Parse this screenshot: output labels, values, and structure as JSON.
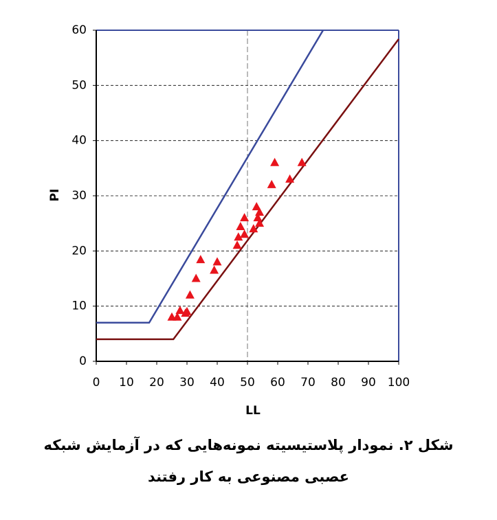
{
  "chart_data": {
    "type": "scatter",
    "x_label": "LL",
    "y_label": "PI",
    "xlim": [
      0,
      100
    ],
    "ylim": [
      0,
      60
    ],
    "xticks": [
      0,
      10,
      20,
      30,
      40,
      50,
      60,
      70,
      80,
      90,
      100
    ],
    "yticks": [
      0,
      10,
      20,
      30,
      40,
      50,
      60
    ],
    "grid": true,
    "vline": 50,
    "series": [
      {
        "type": "line",
        "color": "#3a4a9c",
        "x": [
          0,
          17.5,
          75
        ],
        "values": [
          7,
          7,
          60
        ]
      },
      {
        "type": "line",
        "color": "#7a1010",
        "x": [
          0,
          25.5,
          100
        ],
        "values": [
          4,
          4,
          58.4
        ]
      },
      {
        "type": "scatter",
        "color": "#e8141c",
        "x": [
          25,
          26.8,
          27.7,
          29.5,
          30,
          31,
          33,
          34.5,
          39,
          40,
          46.6,
          47,
          47.7,
          49,
          49,
          52,
          53,
          53.4,
          54,
          54,
          58,
          59,
          64,
          68
        ],
        "values": [
          8,
          8,
          9.2,
          8.7,
          9,
          12,
          15,
          18.4,
          16.5,
          18,
          21,
          22.5,
          24.4,
          23,
          26,
          24,
          28,
          26,
          25,
          27,
          32,
          36,
          33,
          36
        ]
      }
    ]
  },
  "caption": [
    "شکل ۲. نمودار پلاستیسیته نمونه‌هایی که در آزمایش شبکه",
    "عصبی مصنوعی به کار رفتند"
  ]
}
